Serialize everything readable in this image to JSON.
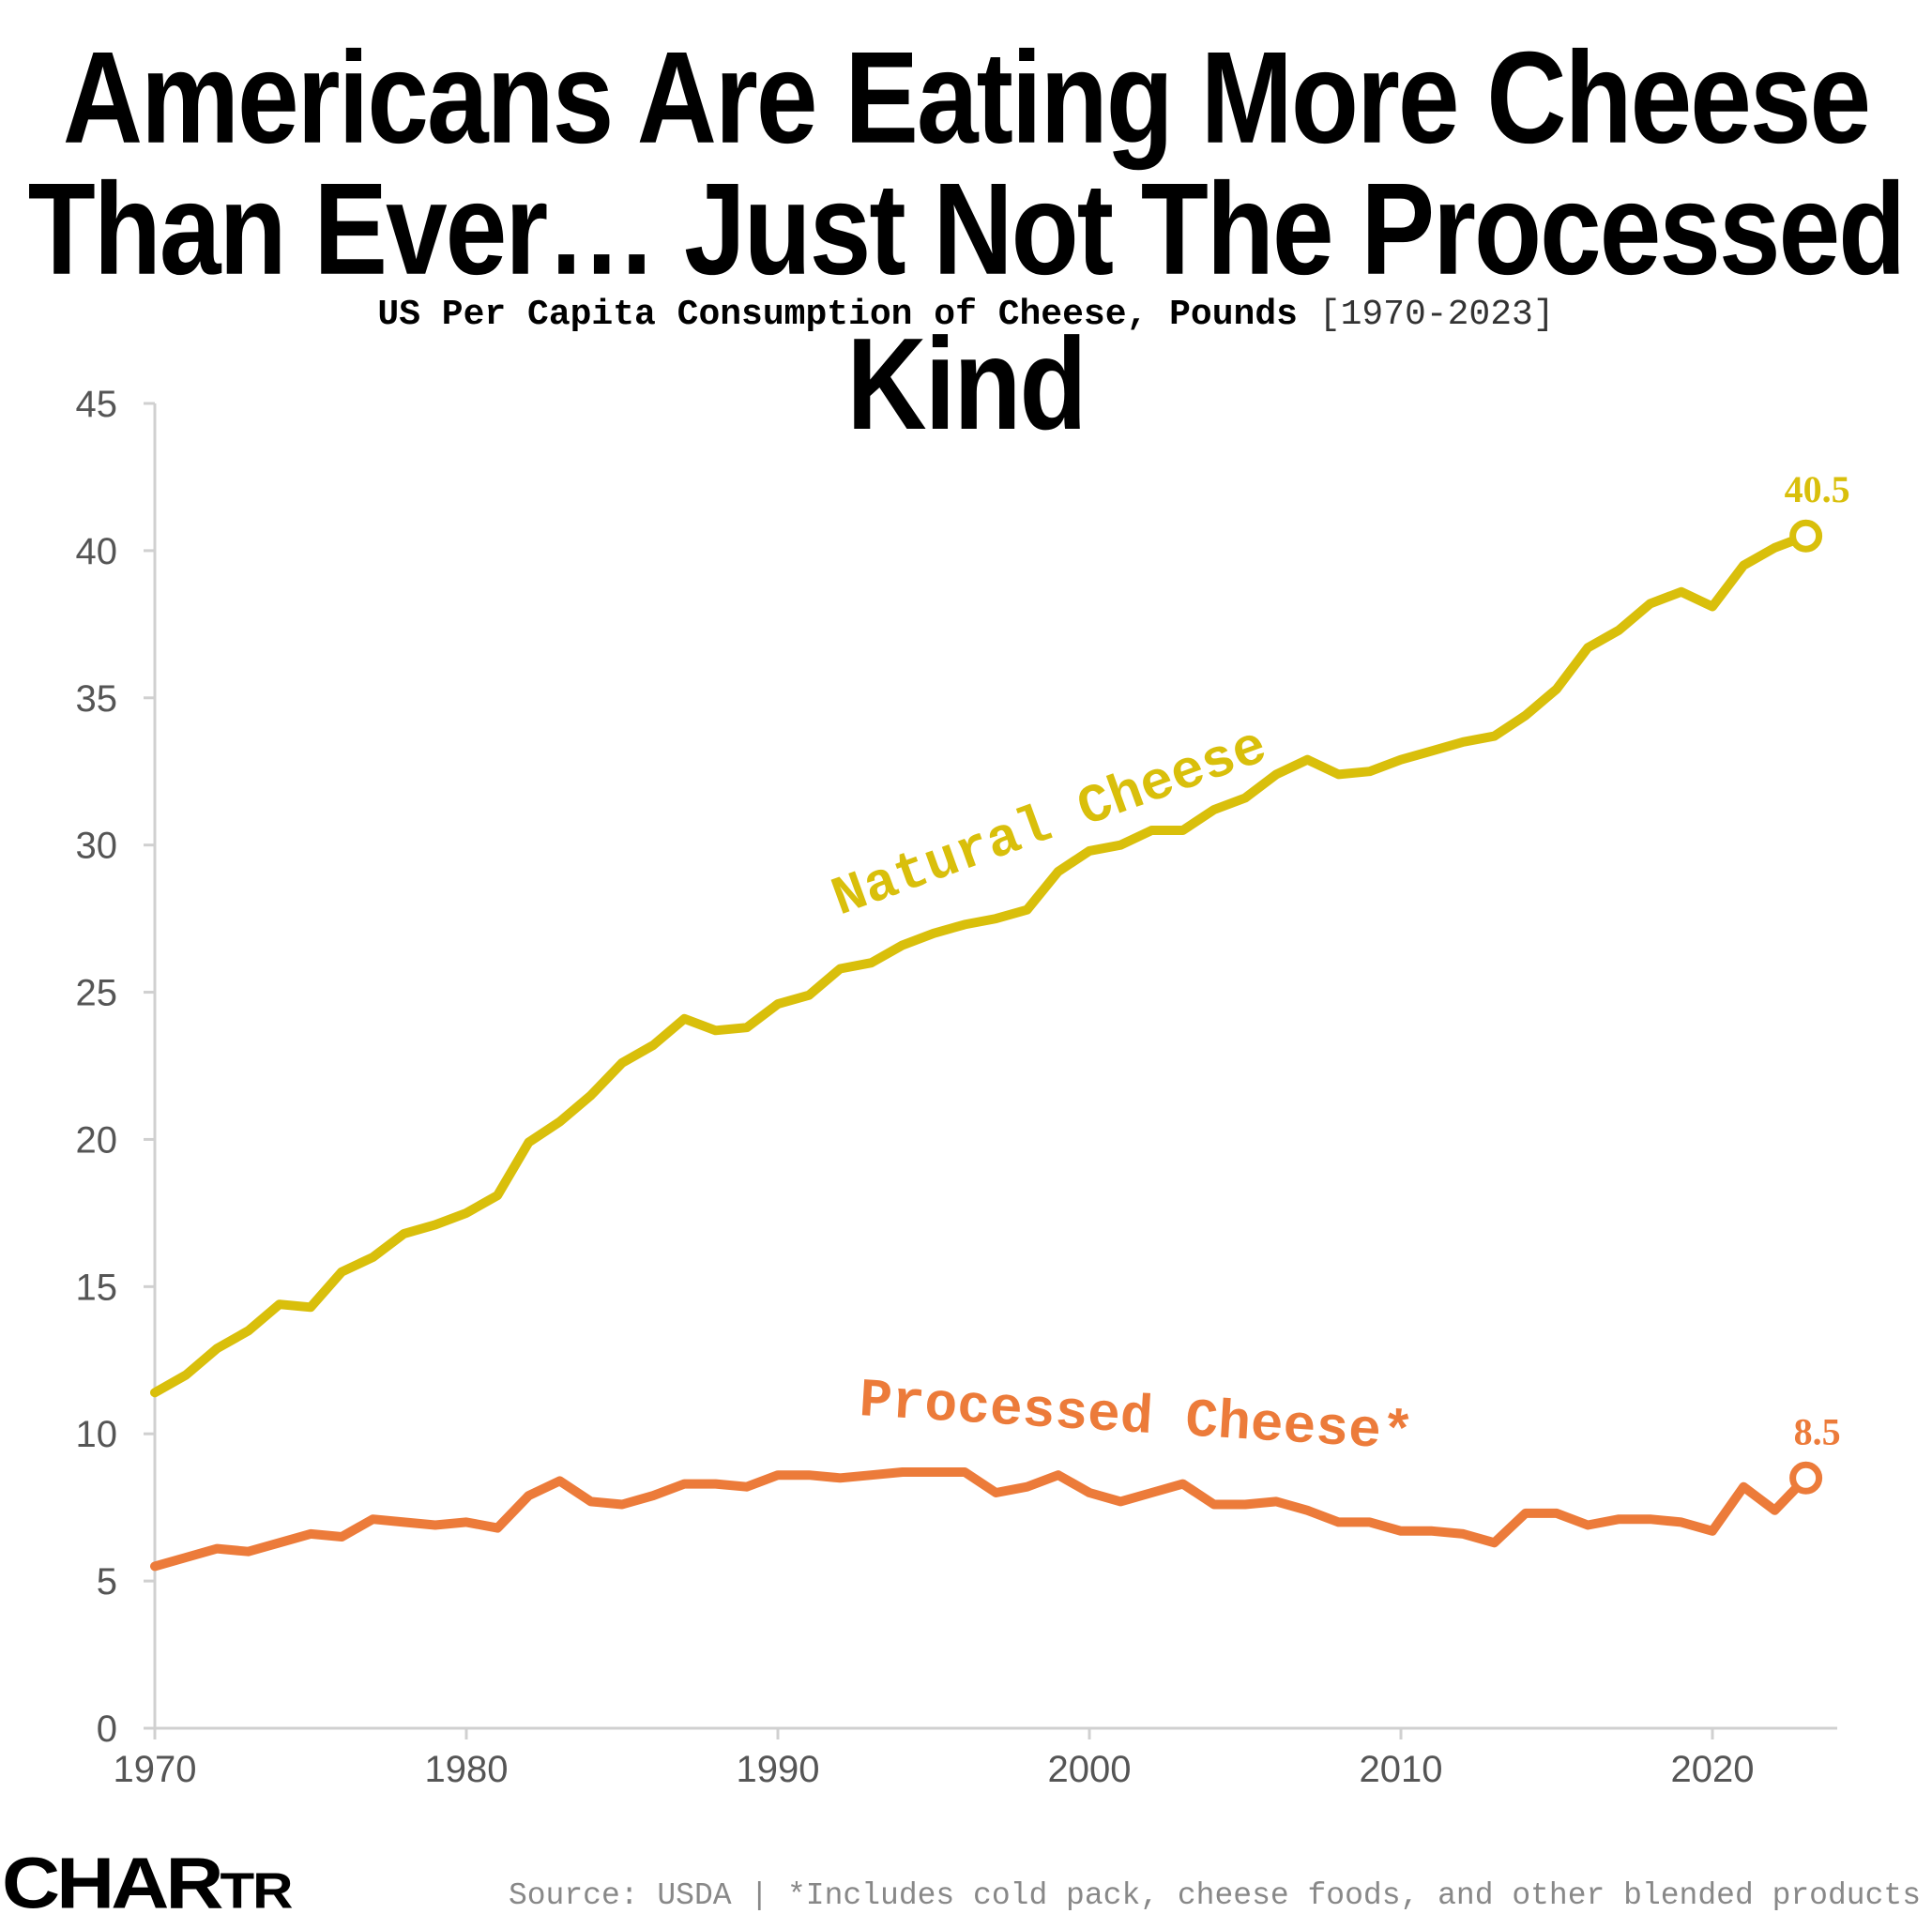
{
  "header": {
    "title_line_1": "Americans Are Eating More Cheese",
    "title_line_2": "Than Ever… Just Not The Processed Kind",
    "subtitle_main": "US Per Capita Consumption of Cheese, Pounds",
    "subtitle_range": "[1970-2023]"
  },
  "footer": {
    "logo_main": "CHAR",
    "logo_small": "TR",
    "source": "Source: USDA | *Includes cold pack, cheese foods, and other blended products"
  },
  "colors": {
    "natural": "#D9BF0B",
    "processed": "#EC7B3A",
    "axis": "#D0D0D0",
    "tick_text": "#555555"
  },
  "chart_data": {
    "type": "line",
    "title": "Americans Are Eating More Cheese Than Ever… Just Not The Processed Kind",
    "subtitle": "US Per Capita Consumption of Cheese, Pounds [1970-2023]",
    "xlabel": "",
    "ylabel": "",
    "xlim": [
      1970,
      2024
    ],
    "ylim": [
      0,
      45
    ],
    "x_ticks": [
      1970,
      1980,
      1990,
      2000,
      2010,
      2020
    ],
    "y_ticks": [
      0,
      5,
      10,
      15,
      20,
      25,
      30,
      35,
      40,
      45
    ],
    "grid": false,
    "x": [
      1970,
      1971,
      1972,
      1973,
      1974,
      1975,
      1976,
      1977,
      1978,
      1979,
      1980,
      1981,
      1982,
      1983,
      1984,
      1985,
      1986,
      1987,
      1988,
      1989,
      1990,
      1991,
      1992,
      1993,
      1994,
      1995,
      1996,
      1997,
      1998,
      1999,
      2000,
      2001,
      2002,
      2003,
      2004,
      2005,
      2006,
      2007,
      2008,
      2009,
      2010,
      2011,
      2012,
      2013,
      2014,
      2015,
      2016,
      2017,
      2018,
      2019,
      2020,
      2021,
      2022,
      2023
    ],
    "series": [
      {
        "name": "Natural Cheese",
        "label": "Natural Cheese",
        "end_label": "40.5",
        "values": [
          11.4,
          12.0,
          12.9,
          13.5,
          14.4,
          14.3,
          15.5,
          16.0,
          16.8,
          17.1,
          17.5,
          18.1,
          19.9,
          20.6,
          21.5,
          22.6,
          23.2,
          24.1,
          23.7,
          23.8,
          24.6,
          24.9,
          25.8,
          26.0,
          26.6,
          27.0,
          27.3,
          27.5,
          27.8,
          29.1,
          29.8,
          30.0,
          30.5,
          30.5,
          31.2,
          31.6,
          32.4,
          32.9,
          32.4,
          32.5,
          32.9,
          33.2,
          33.5,
          33.7,
          34.4,
          35.3,
          36.7,
          37.3,
          38.2,
          38.6,
          38.1,
          39.5,
          40.1,
          40.5
        ]
      },
      {
        "name": "Processed Cheese*",
        "label": "Processed Cheese*",
        "end_label": "8.5",
        "values": [
          5.5,
          5.8,
          6.1,
          6.0,
          6.3,
          6.6,
          6.5,
          7.1,
          7.0,
          6.9,
          7.0,
          6.8,
          7.9,
          8.4,
          7.7,
          7.6,
          7.9,
          8.3,
          8.3,
          8.2,
          8.6,
          8.6,
          8.5,
          8.6,
          8.7,
          8.7,
          8.7,
          8.0,
          8.2,
          8.6,
          8.0,
          7.7,
          8.0,
          8.3,
          7.6,
          7.6,
          7.7,
          7.4,
          7.0,
          7.0,
          6.7,
          6.7,
          6.6,
          6.3,
          7.3,
          7.3,
          6.9,
          7.1,
          7.1,
          7.0,
          6.7,
          8.2,
          7.4,
          8.5
        ]
      }
    ]
  }
}
